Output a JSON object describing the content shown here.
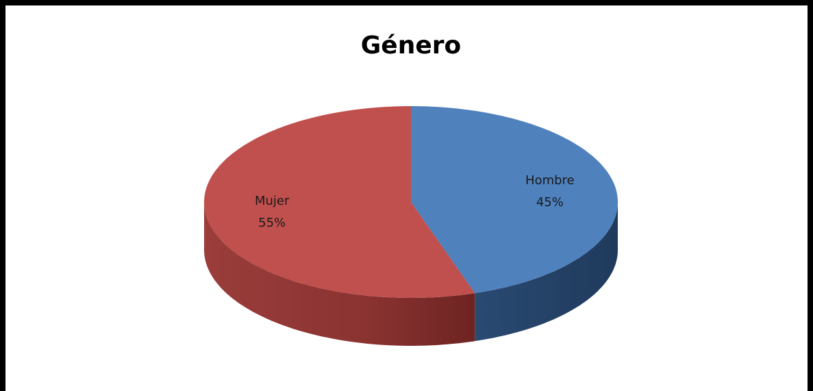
{
  "chart_data": {
    "type": "pie",
    "title": "Género",
    "categories": [
      "Hombre",
      "Mujer"
    ],
    "values": [
      45,
      55
    ],
    "value_labels": [
      "45%",
      "55%"
    ],
    "colors": [
      "#4f81bd",
      "#c0504d"
    ],
    "three_d": true
  }
}
